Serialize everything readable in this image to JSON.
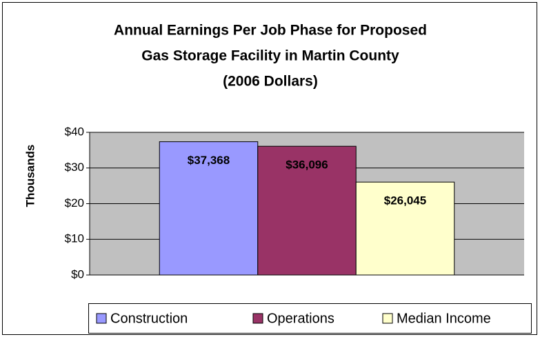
{
  "chart_data": {
    "type": "bar",
    "title": [
      "Annual Earnings Per Job Phase for Proposed",
      "Gas Storage Facility in Martin County",
      "(2006 Dollars)"
    ],
    "y_label": "Thousands",
    "series": [
      {
        "name": "Construction",
        "color": "#9999ff",
        "values": [
          37.368
        ],
        "value_labels": [
          "$37,368"
        ]
      },
      {
        "name": "Operations",
        "color": "#993366",
        "values": [
          36.096
        ],
        "value_labels": [
          "$36,096"
        ]
      },
      {
        "name": "Median Income",
        "color": "#ffffcc",
        "values": [
          26.045
        ],
        "value_labels": [
          "$26,045"
        ]
      }
    ],
    "ylim": [
      0,
      40
    ],
    "yticks": [
      {
        "value": 0,
        "label": "$0"
      },
      {
        "value": 10,
        "label": "$10"
      },
      {
        "value": 20,
        "label": "$20"
      },
      {
        "value": 30,
        "label": "$30"
      },
      {
        "value": 40,
        "label": "$40"
      }
    ],
    "grid": true,
    "legend": "bottom"
  }
}
